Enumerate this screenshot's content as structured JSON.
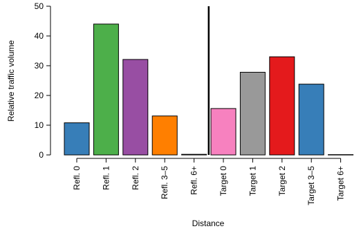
{
  "chart_data": {
    "type": "bar",
    "title": "",
    "xlabel": "Distance",
    "ylabel": "Relative traffic volume",
    "ylim": [
      0,
      50
    ],
    "yticks": [
      0,
      10,
      20,
      30,
      40,
      50
    ],
    "grid": false,
    "legend": "none",
    "categories": [
      "Refl. 0",
      "Refl. 1",
      "Refl. 2",
      "Refl. 3–5",
      "Refl. 6+",
      "Target 0",
      "Target 1",
      "Target 2",
      "Target 3–5",
      "Target 6+"
    ],
    "values": [
      10.8,
      44.0,
      32.1,
      13.1,
      0.2,
      15.6,
      27.8,
      33.0,
      23.8,
      0.1
    ],
    "colors": [
      "#377eb8",
      "#4daf4a",
      "#984ea3",
      "#ff7f00",
      "#377eb8",
      "#f781bf",
      "#999999",
      "#e41a1c",
      "#377eb8",
      "#377eb8"
    ],
    "divider_after_category": 4
  }
}
